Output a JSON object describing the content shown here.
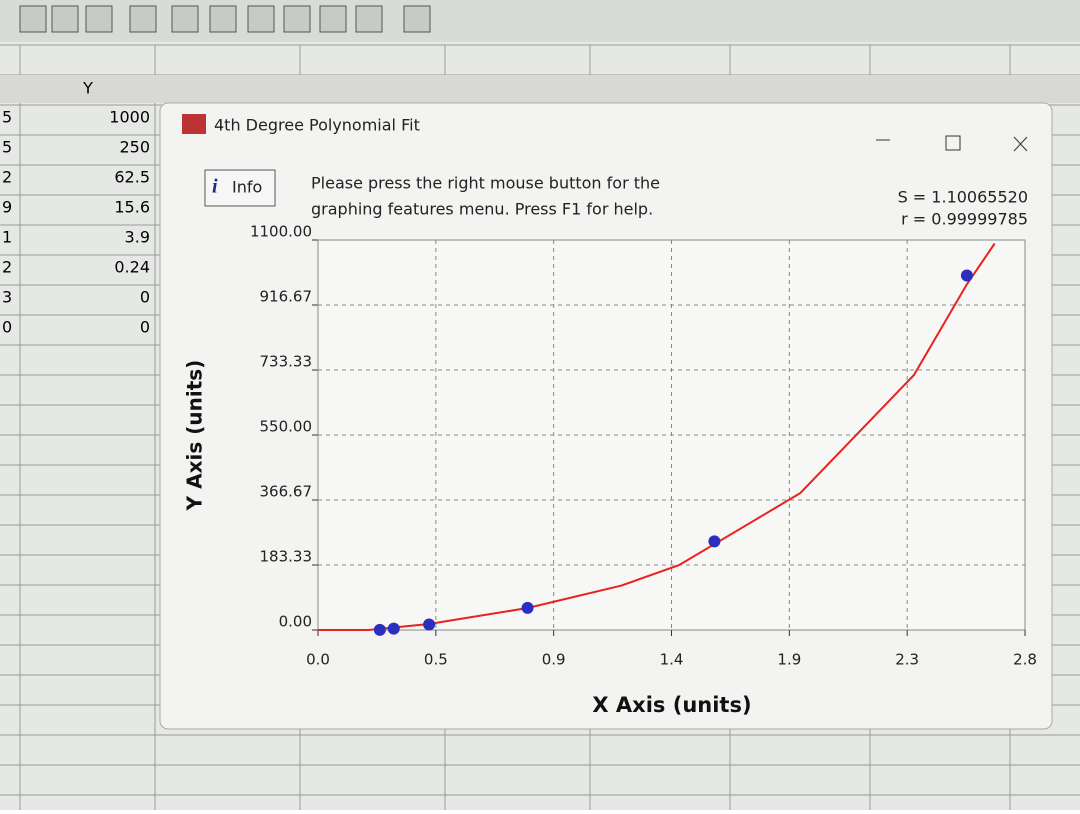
{
  "spreadsheet": {
    "column_header": "Y",
    "left_column": [
      "5",
      "5",
      "2",
      "9",
      "1",
      "2",
      "3",
      "0"
    ],
    "values": [
      "1000",
      "250",
      "62.5",
      "15.6",
      "3.9",
      "0.24",
      "0",
      "0"
    ]
  },
  "window": {
    "title": "4th Degree Polynomial Fit",
    "info_button": "Info",
    "message": [
      "Please press the right mouse button for the",
      "graphing features menu.  Press F1 for help."
    ],
    "stats": [
      "S = 1.10065520",
      "r = 0.99999785"
    ]
  },
  "chart_data": {
    "type": "scatter",
    "xlabel": "X Axis (units)",
    "ylabel": "Y Axis (units)",
    "xlim": [
      0,
      2.8
    ],
    "ylim": [
      0,
      1100
    ],
    "xticks": [
      {
        "value": 0,
        "label": "0.0"
      },
      {
        "value": 0.4667,
        "label": "0.5"
      },
      {
        "value": 0.9333,
        "label": "0.9"
      },
      {
        "value": 1.4,
        "label": "1.4"
      },
      {
        "value": 1.8667,
        "label": "1.9"
      },
      {
        "value": 2.3333,
        "label": "2.3"
      },
      {
        "value": 2.8,
        "label": "2.8"
      }
    ],
    "yticks": [
      {
        "value": 0,
        "label": "0.00"
      },
      {
        "value": 183.33,
        "label": "183.33"
      },
      {
        "value": 366.67,
        "label": "366.67"
      },
      {
        "value": 550,
        "label": "550.00"
      },
      {
        "value": 733.33,
        "label": "733.33"
      },
      {
        "value": 916.67,
        "label": "916.67"
      },
      {
        "value": 1100,
        "label": "1100.00"
      }
    ],
    "grid": true,
    "points": {
      "color": "#2a2fc0",
      "x": [
        0.245,
        0.3,
        0.44,
        0.83,
        1.57,
        2.57
      ],
      "y": [
        0.24,
        3.9,
        15.6,
        62.5,
        250,
        1000
      ]
    },
    "fit_curve": {
      "color": "#e8221c",
      "x": [
        0,
        0.2,
        0.44,
        0.83,
        1.2,
        1.43,
        1.91,
        2.36,
        2.57,
        2.68
      ],
      "y": [
        0,
        0,
        17,
        62,
        125,
        183,
        386,
        719,
        975,
        1090
      ]
    }
  }
}
